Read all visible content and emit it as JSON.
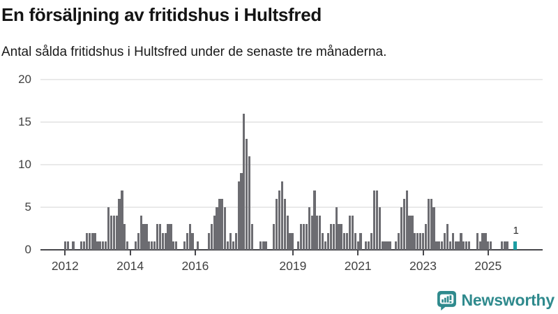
{
  "header": {
    "title": "En försäljning av fritidshus i Hultsfred",
    "subtitle": "Antal sålda fritidshus i Hultsfred under de senaste tre månaderna."
  },
  "branding": {
    "logo_text": "Newsworthy",
    "logo_color": "#2f8a8d"
  },
  "chart_data": {
    "type": "bar",
    "title": "En försäljning av fritidshus i Hultsfred",
    "subtitle": "Antal sålda fritidshus i Hultsfred under de senaste tre månaderna.",
    "x_start": "2012-01",
    "frequency": "monthly",
    "grid": true,
    "ylim": [
      0,
      20
    ],
    "y_ticks": [
      "0",
      "5",
      "10",
      "15",
      "20"
    ],
    "x_ticks": [
      {
        "label": "2012",
        "month": 0
      },
      {
        "label": "2014",
        "month": 24
      },
      {
        "label": "2016",
        "month": 48
      },
      {
        "label": "2019",
        "month": 84
      },
      {
        "label": "2021",
        "month": 108
      },
      {
        "label": "2023",
        "month": 132
      },
      {
        "label": "2025",
        "month": 156
      }
    ],
    "values": [
      1,
      1,
      0,
      1,
      0,
      0,
      1,
      1,
      2,
      2,
      2,
      2,
      1,
      1,
      1,
      1,
      5,
      4,
      4,
      4,
      6,
      7,
      3,
      1,
      0,
      0,
      1,
      2,
      4,
      3,
      3,
      1,
      1,
      1,
      3,
      3,
      2,
      2,
      3,
      3,
      1,
      1,
      0,
      0,
      1,
      2,
      3,
      2,
      0,
      1,
      0,
      0,
      0,
      2,
      3,
      4,
      5,
      6,
      6,
      5,
      1,
      2,
      1,
      2,
      8,
      9,
      16,
      13,
      11,
      3,
      0,
      0,
      1,
      1,
      1,
      0,
      0,
      3,
      6,
      7,
      8,
      6,
      4,
      2,
      2,
      0,
      1,
      3,
      3,
      3,
      5,
      4,
      7,
      4,
      4,
      2,
      1,
      2,
      3,
      3,
      5,
      3,
      3,
      2,
      2,
      4,
      4,
      2,
      1,
      2,
      0,
      1,
      1,
      2,
      7,
      7,
      5,
      1,
      1,
      1,
      1,
      0,
      1,
      2,
      5,
      6,
      7,
      4,
      4,
      2,
      2,
      2,
      2,
      3,
      6,
      6,
      5,
      1,
      1,
      1,
      2,
      3,
      1,
      2,
      1,
      1,
      2,
      1,
      1,
      1,
      0,
      0,
      2,
      1,
      2,
      2,
      1,
      1,
      0,
      0,
      0,
      1,
      1,
      1,
      0,
      0,
      1
    ],
    "highlight": {
      "index": 166,
      "label": "1"
    },
    "colors": {
      "bar": "#6c6c71",
      "highlight_bar": "#1d9ea3",
      "axis": "#47474b",
      "grid": "#e9e9e9",
      "tick_text": "#414141"
    }
  }
}
